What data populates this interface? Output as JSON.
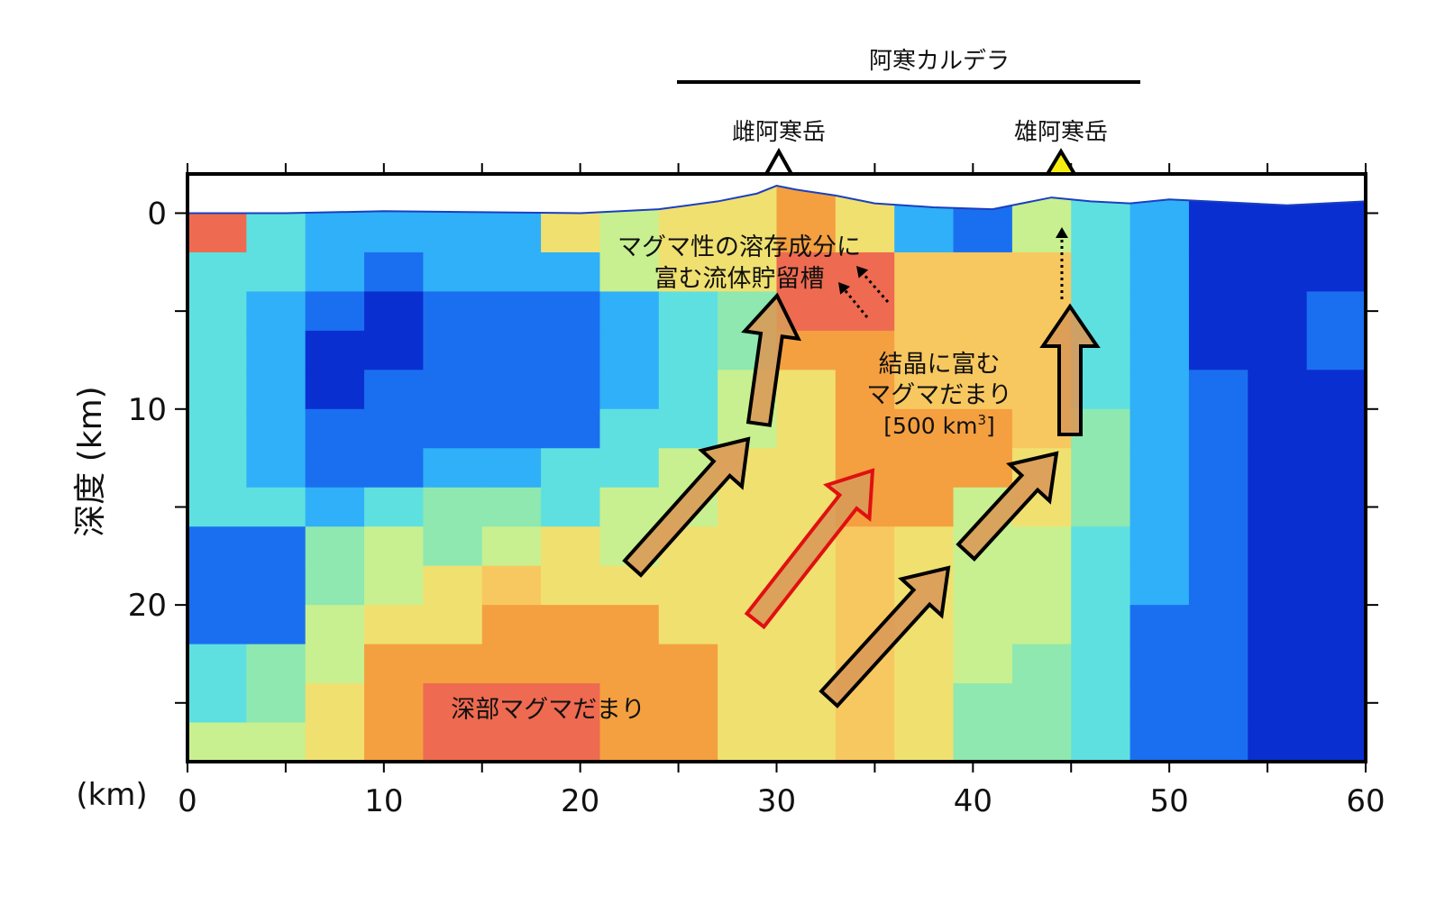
{
  "chart_data": {
    "type": "heatmap",
    "xlabel_unit": "(km)",
    "ylabel": "深度 (km)",
    "xlim": [
      0,
      60
    ],
    "ylim": [
      -2,
      28
    ],
    "x_ticks": [
      0,
      10,
      20,
      30,
      40,
      50,
      60
    ],
    "y_ticks": [
      0,
      10,
      20
    ],
    "colormap": [
      "#0a2fd0",
      "#1a6ff0",
      "#2fb0f8",
      "#5fe0e0",
      "#8ee8b0",
      "#c8f090",
      "#f0e070",
      "#f8c860",
      "#f4a040",
      "#ee6a50"
    ],
    "cell_width_km": 3,
    "cell_height_km": 2,
    "levels_by_column": [
      [
        9,
        3,
        3,
        3,
        3,
        3,
        3,
        3,
        1,
        1,
        1,
        3,
        3,
        5
      ],
      [
        3,
        3,
        2,
        2,
        2,
        2,
        2,
        3,
        1,
        1,
        1,
        4,
        4,
        5
      ],
      [
        2,
        2,
        1,
        0,
        0,
        1,
        1,
        2,
        4,
        4,
        5,
        5,
        6,
        6
      ],
      [
        2,
        1,
        0,
        0,
        1,
        1,
        1,
        3,
        5,
        5,
        6,
        8,
        8,
        8
      ],
      [
        2,
        2,
        1,
        1,
        1,
        1,
        2,
        4,
        4,
        6,
        6,
        8,
        9,
        9
      ],
      [
        2,
        2,
        1,
        1,
        1,
        1,
        2,
        4,
        5,
        7,
        8,
        8,
        9,
        9
      ],
      [
        6,
        2,
        1,
        1,
        1,
        1,
        3,
        3,
        6,
        6,
        8,
        8,
        9,
        9
      ],
      [
        5,
        5,
        2,
        2,
        2,
        3,
        3,
        5,
        5,
        6,
        8,
        8,
        8,
        8
      ],
      [
        6,
        6,
        3,
        3,
        3,
        3,
        5,
        5,
        6,
        6,
        6,
        8,
        8,
        8
      ],
      [
        6,
        6,
        4,
        4,
        5,
        5,
        6,
        6,
        6,
        6,
        6,
        6,
        6,
        6
      ],
      [
        8,
        9,
        9,
        8,
        6,
        6,
        6,
        6,
        6,
        6,
        6,
        6,
        6,
        6
      ],
      [
        6,
        9,
        9,
        8,
        8,
        8,
        8,
        8,
        7,
        7,
        7,
        7,
        7,
        7
      ],
      [
        2,
        7,
        7,
        7,
        7,
        8,
        8,
        8,
        6,
        6,
        6,
        6,
        6,
        6
      ],
      [
        1,
        7,
        7,
        7,
        7,
        8,
        8,
        5,
        5,
        5,
        5,
        5,
        4,
        4
      ],
      [
        5,
        7,
        7,
        7,
        7,
        7,
        6,
        6,
        5,
        5,
        5,
        4,
        4,
        4
      ],
      [
        3,
        3,
        3,
        3,
        3,
        4,
        4,
        4,
        3,
        3,
        3,
        3,
        3,
        3
      ],
      [
        2,
        2,
        2,
        2,
        2,
        2,
        2,
        2,
        2,
        2,
        1,
        1,
        1,
        1
      ],
      [
        0,
        0,
        0,
        0,
        1,
        1,
        1,
        1,
        1,
        1,
        1,
        1,
        1,
        1
      ],
      [
        0,
        0,
        0,
        0,
        0,
        0,
        0,
        0,
        0,
        0,
        0,
        0,
        0,
        0
      ],
      [
        0,
        0,
        1,
        1,
        0,
        0,
        0,
        0,
        0,
        0,
        0,
        0,
        0,
        0
      ]
    ]
  },
  "annotations": {
    "caldera": "阿寒カルデラ",
    "volcano_west": "雌阿寒岳",
    "volcano_east": "雄阿寒岳",
    "fluid_reservoir_line1": "マグマ性の溶存成分に",
    "fluid_reservoir_line2": "富む流体貯留槽",
    "crystal_mush_line1": "結晶に富む",
    "crystal_mush_line2": "マグマだまり",
    "crystal_mush_volume": "[500 km",
    "crystal_mush_volume_sup": "3",
    "crystal_mush_volume_end": "]",
    "deep_magma": "深部マグマだまり"
  },
  "colors": {
    "volcano_east_fill": "#f5ee10",
    "arrow_fill": "#d99a58",
    "highlight_arrow_stroke": "#e01010"
  }
}
